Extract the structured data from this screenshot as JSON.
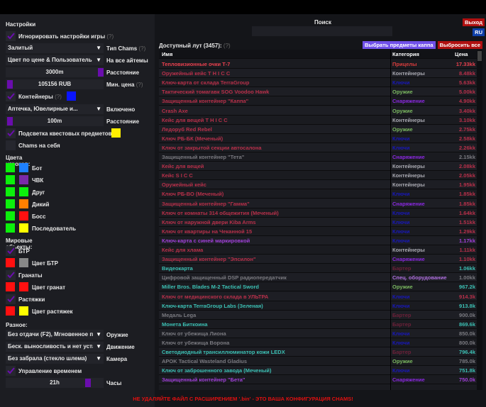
{
  "settings": {
    "title": "Настройки",
    "ignore_game_settings": "Игнорировать настройки игры",
    "help": "(?)",
    "chams_type_value": "Залитый",
    "chams_type_label": "Тип Chams",
    "color_mode_value": "Цвет по цене & Пользователь",
    "color_mode_label": "На все айтемы",
    "distance_value": "3000m",
    "distance_label": "Расстояние",
    "min_price_value": "105156 RUB",
    "min_price_label": "Мин. цена",
    "containers": "Контейнеры",
    "containers_color": "#0a14ff",
    "containers_filter_value": "Аптечка, Ювелирные и...",
    "containers_filter_label": "Включено",
    "container_distance_value": "100m",
    "container_distance_label": "Расстояние",
    "quest_highlight": "Подсветка квестовых предметов",
    "quest_color": "#ffee00",
    "chams_self": "Chams на себя"
  },
  "player_colors": {
    "title": "Цвета игроков:",
    "items": [
      {
        "label": "Бот",
        "c1": "#0cf00c",
        "c2": "#1e80ff"
      },
      {
        "label": "ЧВК",
        "c1": "#0cf00c",
        "c2": "#7a2aa8"
      },
      {
        "label": "Друг",
        "c1": "#0cf00c",
        "c2": "#0cf00c"
      },
      {
        "label": "Дикий",
        "c1": "#0cf00c",
        "c2": "#ff8000"
      },
      {
        "label": "Босс",
        "c1": "#0cf00c",
        "c2": "#ff1010"
      },
      {
        "label": "Последователь",
        "c1": "#0cf00c",
        "c2": "#ffff00"
      }
    ]
  },
  "world": {
    "title": "Мировые объекты:",
    "btr": "БТР",
    "btr_color": "Цвет БТР",
    "grenades": "Гранаты",
    "grenades_color": "Цвет гранат",
    "tripwires": "Растяжки",
    "tripwires_color": "Цвет растяжек"
  },
  "misc": {
    "title": "Разное:",
    "weapon_value": "Без отдачи (F2), Мгновенное п",
    "weapon_label": "Оружие",
    "movement_value": "Беск. выносливость и нет уста",
    "movement_label": "Движение",
    "camera_value": "Без забрала (стекло шлема)",
    "camera_label": "Камера",
    "time_control": "Управление временем",
    "hours_value": "21h",
    "hours_label": "Часы"
  },
  "header": {
    "search_label": "Поиск",
    "search_value": "",
    "exit": "Выход",
    "lang": "RU"
  },
  "loot": {
    "title": "Доступный лут (3457):",
    "help": "(?)",
    "select_kappa": "Выбрать предметы каппа",
    "drop_all": "Выбросить все",
    "columns": [
      "Имя",
      "Категория",
      "Цена"
    ],
    "rows": [
      [
        "Тепловизионные очки Т-7",
        "Прицелы",
        "17.33kk",
        "r1"
      ],
      [
        "Оружейный кейс T H I C C",
        "Контейнеры",
        "8.48kk",
        "r"
      ],
      [
        "Ключ-карта от склада TerraGroup",
        "Ключи",
        "5.63kk",
        "r"
      ],
      [
        "Тактический томагавк SOG Voodoo Hawk",
        "Оружие",
        "5.00kk",
        "r"
      ],
      [
        "Защищенный контейнер \"Каппа\"",
        "Снаряжение",
        "4.90kk",
        "r"
      ],
      [
        "Crash Axe",
        "Оружие",
        "3.40kk",
        "r"
      ],
      [
        "Кейс для вещей T H I C C",
        "Контейнеры",
        "3.10kk",
        "r"
      ],
      [
        "Ледоруб Red Rebel",
        "Оружие",
        "2.75kk",
        "r"
      ],
      [
        "Ключ РБ-БК (Меченый)",
        "Ключи",
        "2.58kk",
        "r"
      ],
      [
        "Ключ от закрытой секции автосалона",
        "Ключи",
        "2.26kk",
        "r"
      ],
      [
        "Защищенный контейнер \"Тета\"",
        "Снаряжение",
        "2.15kk",
        "g"
      ],
      [
        "Кейс для вещей",
        "Контейнеры",
        "2.08kk",
        "r"
      ],
      [
        "Кейс S I C C",
        "Контейнеры",
        "2.05kk",
        "r"
      ],
      [
        "Оружейный кейс",
        "Контейнеры",
        "1.95kk",
        "r"
      ],
      [
        "Ключ РБ-ВО (Меченый)",
        "Ключи",
        "1.85kk",
        "r"
      ],
      [
        "Защищенный контейнер \"Гамма\"",
        "Снаряжение",
        "1.85kk",
        "r"
      ],
      [
        "Ключ от комнаты 314 общежития (Меченый)",
        "Ключи",
        "1.64kk",
        "r"
      ],
      [
        "Ключ от наружной двери Kiba Arms",
        "Ключи",
        "1.51kk",
        "r"
      ],
      [
        "Ключ от квартиры на Чеканной 15",
        "Ключи",
        "1.29kk",
        "r"
      ],
      [
        "Ключ-карта с синей маркировкой",
        "Ключи",
        "1.17kk",
        "p"
      ],
      [
        "Кейс для хлама",
        "Контейнеры",
        "1.11kk",
        "r"
      ],
      [
        "Защищенный контейнер \"Эпсилон\"",
        "Снаряжение",
        "1.10kk",
        "r"
      ],
      [
        "Видеокарта",
        "Бартер",
        "1.06kk",
        "t"
      ],
      [
        "Цифровой защищенный DSP радиопередатчик",
        "Спец. оборудование",
        "1.00kk",
        "g"
      ],
      [
        "Miller Bros. Blades M-2 Tactical Sword",
        "Оружие",
        "967.2k",
        "t"
      ],
      [
        "Ключ от медицинского склада в УЛЬТРА",
        "Ключи",
        "914.3k",
        "r"
      ],
      [
        "Ключ-карта TerraGroup Labs (Зеленая)",
        "Ключи",
        "913.8k",
        "t"
      ],
      [
        "Медаль Lega",
        "Бартер",
        "900.0k",
        "g"
      ],
      [
        "Монета Биткоина",
        "Бартер",
        "869.6k",
        "t"
      ],
      [
        "Ключ от убежища Лиона",
        "Ключи",
        "850.0k",
        "g"
      ],
      [
        "Ключ от убежища Ворона",
        "Ключи",
        "800.0k",
        "g"
      ],
      [
        "Светодиодный трансиллюминатор кожи LEDX",
        "Бартер",
        "796.4k",
        "t"
      ],
      [
        "APOK Tactical Wasteland Gladius",
        "Оружие",
        "785.0k",
        "g"
      ],
      [
        "Ключ от заброшенного завода (Меченый)",
        "Ключи",
        "751.8k",
        "t"
      ],
      [
        "Защищенный контейнер \"Бета\"",
        "Снаряжение",
        "750.0k",
        "p"
      ]
    ]
  },
  "colors": {
    "r1": "#e8404e",
    "r": "#b8304a",
    "g": "#7a7a80",
    "t": "#3cc0b4",
    "p": "#a040d8",
    "Прицелы": "#d83c3c",
    "Контейнеры": "#a8a8b0",
    "Ключи": "#1818b8",
    "Оружие": "#7ab860",
    "Снаряжение": "#8a28e0",
    "Бартер": "#6a2038",
    "Спец. оборудование": "#b070e0",
    "accent": "#6a0dad"
  },
  "warning": "НЕ УДАЛЯЙТЕ ФАЙЛ С РАСШИРЕНИЕМ '.bin' - ЭТО ВАША КОНФИГУРАЦИЯ CHAMS!"
}
